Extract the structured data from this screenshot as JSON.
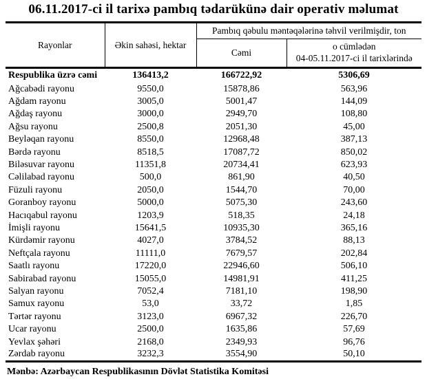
{
  "title": "06.11.2017-ci il tarixə pambıq tədarükünə dair operativ məlumat",
  "table": {
    "headers": {
      "rayonlar": "Rayonlar",
      "ekin_sahesi": "Əkin sahəsi, hektar",
      "tehvil_group": "Pambıq qəbulu məntəqələrinə təhvil verilmişdir, ton",
      "cemi": "Cəmi",
      "o_cumleden_line1": "o cümlədən",
      "o_cumleden_line2": "04-05.11.2017-ci il tarixlərində"
    },
    "rows": [
      {
        "name": "Respublika üzrə cəmi",
        "area": "136413,2",
        "total": "166722,92",
        "recent": "5306,69",
        "bold": true
      },
      {
        "name": "Ağcabədi rayonu",
        "area": "9550,0",
        "total": "15878,86",
        "recent": "563,96"
      },
      {
        "name": "Ağdam rayonu",
        "area": "3005,0",
        "total": "5001,47",
        "recent": "144,09"
      },
      {
        "name": "Ağdaş rayonu",
        "area": "3000,0",
        "total": "2949,70",
        "recent": "108,80"
      },
      {
        "name": "Ağsu rayonu",
        "area": "2500,8",
        "total": "2051,30",
        "recent": "45,00"
      },
      {
        "name": "Beyləqan rayonu",
        "area": "8550,0",
        "total": "12968,48",
        "recent": "387,13"
      },
      {
        "name": "Bərdə rayonu",
        "area": "8518,5",
        "total": "17087,72",
        "recent": "850,02"
      },
      {
        "name": "Biləsuvar rayonu",
        "area": "11351,8",
        "total": "20734,41",
        "recent": "623,93"
      },
      {
        "name": "Cəlilabad rayonu",
        "area": "500,0",
        "total": "861,90",
        "recent": "40,50"
      },
      {
        "name": "Füzuli rayonu",
        "area": "2050,0",
        "total": "1544,70",
        "recent": "70,00"
      },
      {
        "name": "Goranboy rayonu",
        "area": "5000,0",
        "total": "5075,30",
        "recent": "243,60"
      },
      {
        "name": "Hacıqabul rayonu",
        "area": "1203,9",
        "total": "518,35",
        "recent": "24,18"
      },
      {
        "name": "İmişli rayonu",
        "area": "15641,5",
        "total": "10935,30",
        "recent": "365,16"
      },
      {
        "name": "Kürdəmir rayonu",
        "area": "4027,0",
        "total": "3784,52",
        "recent": "88,13"
      },
      {
        "name": "Neftçala rayonu",
        "area": "11111,0",
        "total": "7679,57",
        "recent": "202,84"
      },
      {
        "name": "Saatlı rayonu",
        "area": "17220,0",
        "total": "22946,60",
        "recent": "506,10"
      },
      {
        "name": "Sabirabad rayonu",
        "area": "15055,0",
        "total": "14981,91",
        "recent": "411,25"
      },
      {
        "name": "Salyan rayonu",
        "area": "7052,4",
        "total": "7181,10",
        "recent": "198,90"
      },
      {
        "name": "Samux rayonu",
        "area": "53,0",
        "total": "33,72",
        "recent": "1,85"
      },
      {
        "name": "Tərtər rayonu",
        "area": "3123,0",
        "total": "6967,32",
        "recent": "226,70"
      },
      {
        "name": "Ucar rayonu",
        "area": "2500,0",
        "total": "1635,86",
        "recent": "57,69"
      },
      {
        "name": "Yevlax şəhəri",
        "area": "2168,0",
        "total": "2349,93",
        "recent": "96,76"
      },
      {
        "name": "Zərdab rayonu",
        "area": "3232,3",
        "total": "3554,90",
        "recent": "50,10"
      }
    ]
  },
  "footer": "Mənbə: Azərbaycan Respublikasının Dövlət Statistika Komitəsi"
}
